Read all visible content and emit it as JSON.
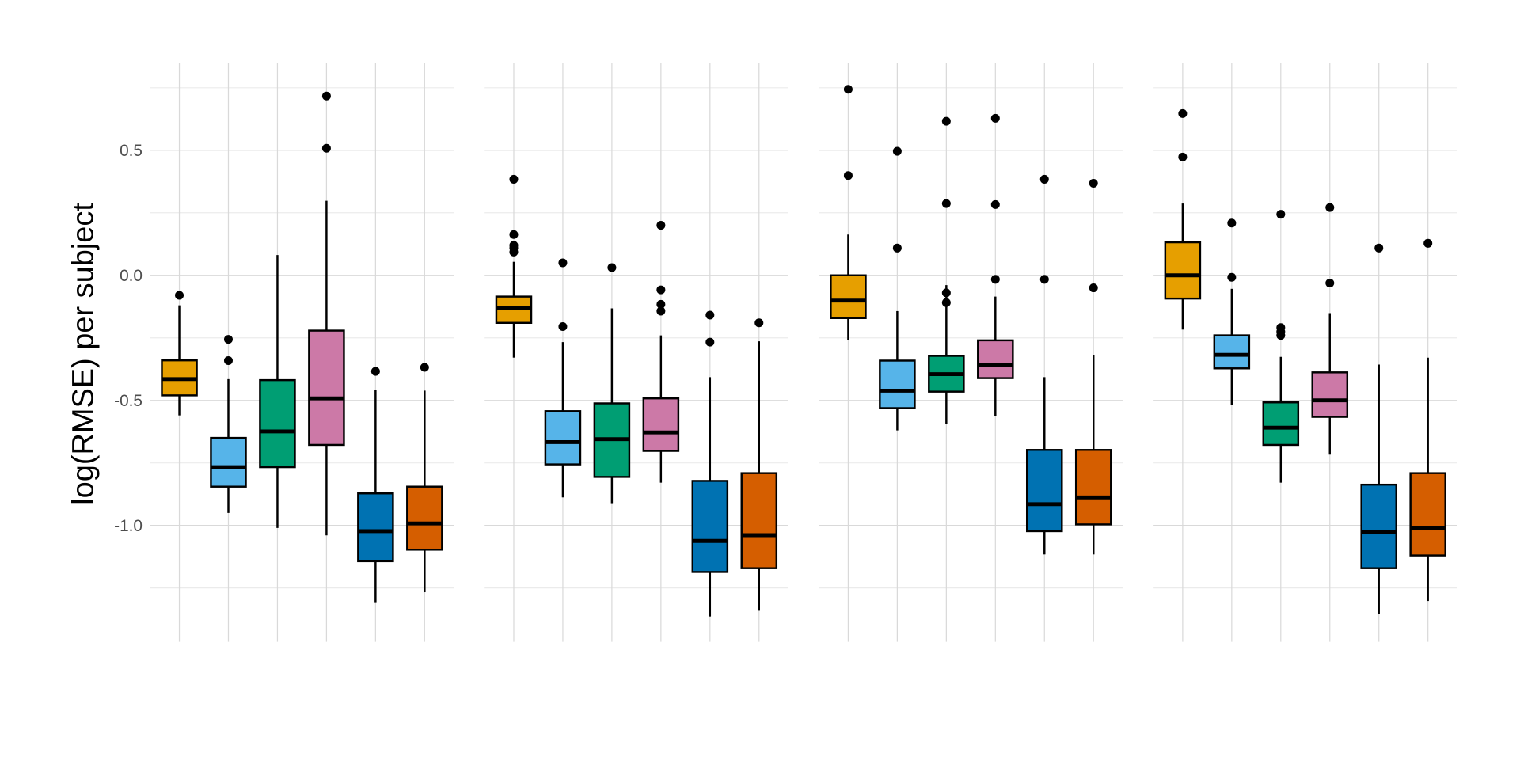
{
  "chart_data": {
    "type": "box",
    "title": "",
    "xlabel": "",
    "ylabel": "log(RMSE) per subject",
    "ylim": [
      -1.45,
      0.84
    ],
    "yticks": [
      0.5,
      0.0,
      -0.5,
      -1.0
    ],
    "ytick_labels": [
      "0.5",
      "0.0",
      "-0.5",
      "-1.0"
    ],
    "minor_yticks": [
      0.75,
      0.25,
      -0.25,
      -0.75,
      -1.25
    ],
    "grid": true,
    "legend": "none",
    "colors": [
      "#E69F00",
      "#56B4E9",
      "#009E73",
      "#CC79A7",
      "#0072B2",
      "#D55E00"
    ],
    "panels": [
      {
        "boxes": [
          {
            "whisker_low": -0.56,
            "q1": -0.48,
            "median": -0.415,
            "q3": -0.34,
            "whisker_high": -0.12,
            "outliers": [
              -0.08
            ]
          },
          {
            "whisker_low": -0.95,
            "q1": -0.845,
            "median": -0.767,
            "q3": -0.65,
            "whisker_high": -0.415,
            "outliers": [
              -0.256,
              -0.341
            ]
          },
          {
            "whisker_low": -1.01,
            "q1": -0.767,
            "median": -0.624,
            "q3": -0.419,
            "whisker_high": 0.081,
            "outliers": []
          },
          {
            "whisker_low": -1.04,
            "q1": -0.678,
            "median": -0.492,
            "q3": -0.221,
            "whisker_high": 0.298,
            "outliers": [
              0.717,
              0.508
            ]
          },
          {
            "whisker_low": -1.31,
            "q1": -1.143,
            "median": -1.023,
            "q3": -0.872,
            "whisker_high": -0.457,
            "outliers": [
              -0.384
            ]
          },
          {
            "whisker_low": -1.267,
            "q1": -1.097,
            "median": -0.992,
            "q3": -0.845,
            "whisker_high": -0.461,
            "outliers": [
              -0.368
            ]
          }
        ]
      },
      {
        "boxes": [
          {
            "whisker_low": -0.329,
            "q1": -0.19,
            "median": -0.132,
            "q3": -0.085,
            "whisker_high": 0.054,
            "outliers": [
              0.384,
              0.163,
              0.12,
              0.109,
              0.093
            ]
          },
          {
            "whisker_low": -0.888,
            "q1": -0.756,
            "median": -0.667,
            "q3": -0.543,
            "whisker_high": -0.267,
            "outliers": [
              0.05,
              -0.205
            ]
          },
          {
            "whisker_low": -0.911,
            "q1": -0.806,
            "median": -0.655,
            "q3": -0.512,
            "whisker_high": -0.132,
            "outliers": [
              0.031
            ]
          },
          {
            "whisker_low": -0.829,
            "q1": -0.702,
            "median": -0.628,
            "q3": -0.492,
            "whisker_high": -0.24,
            "outliers": [
              0.2,
              -0.058,
              -0.116,
              -0.143
            ]
          },
          {
            "whisker_low": -1.364,
            "q1": -1.186,
            "median": -1.062,
            "q3": -0.822,
            "whisker_high": -0.407,
            "outliers": [
              -0.159,
              -0.267
            ]
          },
          {
            "whisker_low": -1.341,
            "q1": -1.171,
            "median": -1.039,
            "q3": -0.791,
            "whisker_high": -0.264,
            "outliers": [
              -0.19
            ]
          }
        ]
      },
      {
        "boxes": [
          {
            "whisker_low": -0.26,
            "q1": -0.171,
            "median": -0.101,
            "q3": 0.0,
            "whisker_high": 0.163,
            "outliers": [
              0.744,
              0.399
            ]
          },
          {
            "whisker_low": -0.62,
            "q1": -0.531,
            "median": -0.461,
            "q3": -0.341,
            "whisker_high": -0.143,
            "outliers": [
              0.496,
              0.109
            ]
          },
          {
            "whisker_low": -0.593,
            "q1": -0.465,
            "median": -0.395,
            "q3": -0.322,
            "whisker_high": -0.039,
            "outliers": [
              0.616,
              0.287,
              -0.07,
              -0.109
            ]
          },
          {
            "whisker_low": -0.562,
            "q1": -0.411,
            "median": -0.357,
            "q3": -0.26,
            "whisker_high": -0.085,
            "outliers": [
              0.628,
              0.283,
              -0.016
            ]
          },
          {
            "whisker_low": -1.116,
            "q1": -1.023,
            "median": -0.915,
            "q3": -0.698,
            "whisker_high": -0.407,
            "outliers": [
              0.384,
              -0.016
            ]
          },
          {
            "whisker_low": -1.116,
            "q1": -0.996,
            "median": -0.888,
            "q3": -0.698,
            "whisker_high": -0.318,
            "outliers": [
              0.368,
              -0.05
            ]
          }
        ]
      },
      {
        "boxes": [
          {
            "whisker_low": -0.217,
            "q1": -0.093,
            "median": 0.0,
            "q3": 0.132,
            "whisker_high": 0.287,
            "outliers": [
              0.647,
              0.473
            ]
          },
          {
            "whisker_low": -0.519,
            "q1": -0.372,
            "median": -0.318,
            "q3": -0.24,
            "whisker_high": -0.054,
            "outliers": [
              0.209,
              -0.008
            ]
          },
          {
            "whisker_low": -0.829,
            "q1": -0.678,
            "median": -0.609,
            "q3": -0.508,
            "whisker_high": -0.326,
            "outliers": [
              0.244,
              -0.209,
              -0.225,
              -0.24
            ]
          },
          {
            "whisker_low": -0.717,
            "q1": -0.566,
            "median": -0.5,
            "q3": -0.388,
            "whisker_high": -0.151,
            "outliers": [
              0.271,
              -0.031
            ]
          },
          {
            "whisker_low": -1.353,
            "q1": -1.171,
            "median": -1.027,
            "q3": -0.837,
            "whisker_high": -0.357,
            "outliers": [
              0.109
            ]
          },
          {
            "whisker_low": -1.302,
            "q1": -1.12,
            "median": -1.012,
            "q3": -0.791,
            "whisker_high": -0.329,
            "outliers": [
              0.128
            ]
          }
        ]
      }
    ]
  }
}
